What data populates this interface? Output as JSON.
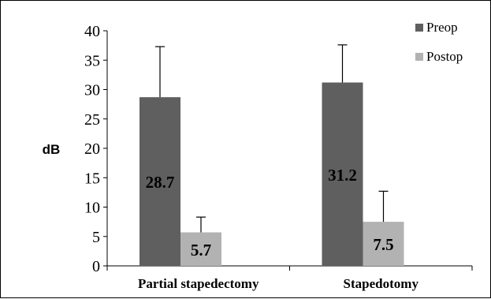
{
  "chart_data": {
    "type": "bar",
    "categories": [
      "Partial stapedectomy",
      "Stapedotomy"
    ],
    "series": [
      {
        "name": "Preop",
        "values": [
          28.7,
          31.2
        ],
        "errors": [
          8.6,
          6.4
        ],
        "color": "#5f5f5f"
      },
      {
        "name": "Postop",
        "values": [
          5.7,
          7.5
        ],
        "errors": [
          2.6,
          5.2
        ],
        "color": "#b2b2b2"
      }
    ],
    "data_labels": [
      "28.7",
      "31.2",
      "5.7",
      "7.5"
    ],
    "ylabel": "dB",
    "xlabel": "",
    "ylim": [
      0,
      40
    ],
    "yticks": [
      "0",
      "5",
      "10",
      "15",
      "20",
      "25",
      "30",
      "35",
      "40"
    ],
    "grid": false,
    "legend_position": "top-right"
  }
}
